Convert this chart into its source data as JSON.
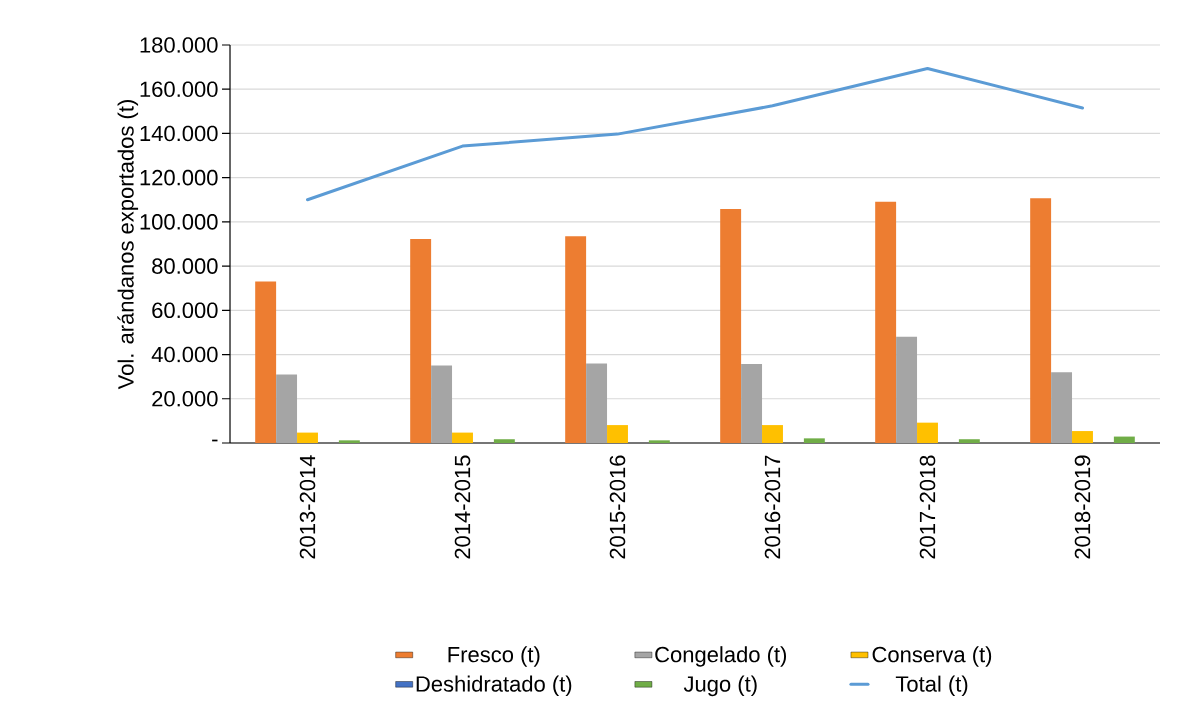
{
  "chart_data": {
    "type": "bar",
    "ylabel": "Vol. arándanos exportados (t)",
    "categories": [
      "2013-2014",
      "2014-2015",
      "2015-2016",
      "2016-2017",
      "2017-2018",
      "2018-2019"
    ],
    "series": [
      {
        "name": "Fresco (t)",
        "color": "#ed7d31",
        "values": [
          73000,
          92300,
          93500,
          105800,
          109100,
          110700
        ]
      },
      {
        "name": "Congelado (t)",
        "color": "#a5a5a5",
        "values": [
          31000,
          35000,
          35900,
          35700,
          48000,
          32000
        ]
      },
      {
        "name": "Conserva (t)",
        "color": "#ffc000",
        "values": [
          4700,
          4700,
          8100,
          8100,
          9200,
          5400
        ]
      },
      {
        "name": "Deshidratado (t)",
        "color": "#4472c4",
        "values": [
          0,
          0,
          0,
          0,
          0,
          0
        ]
      },
      {
        "name": "Jugo (t)",
        "color": "#70ad47",
        "values": [
          1200,
          1700,
          1200,
          2100,
          1700,
          2900
        ]
      },
      {
        "name": "Total (t)",
        "color": "#5b9bd5",
        "type": "line",
        "values": [
          110000,
          134300,
          139700,
          152500,
          169400,
          151500
        ]
      }
    ],
    "ylim": [
      0,
      180000
    ],
    "yticks": [
      {
        "value": 0,
        "label": "-"
      },
      {
        "value": 20000,
        "label": "20.000"
      },
      {
        "value": 40000,
        "label": "40.000"
      },
      {
        "value": 60000,
        "label": "60.000"
      },
      {
        "value": 80000,
        "label": "80.000"
      },
      {
        "value": 100000,
        "label": "100.000"
      },
      {
        "value": 120000,
        "label": "120.000"
      },
      {
        "value": 140000,
        "label": "140.000"
      },
      {
        "value": 160000,
        "label": "160.000"
      },
      {
        "value": 180000,
        "label": "180.000"
      }
    ],
    "grid": "y",
    "legend": "bottom"
  }
}
